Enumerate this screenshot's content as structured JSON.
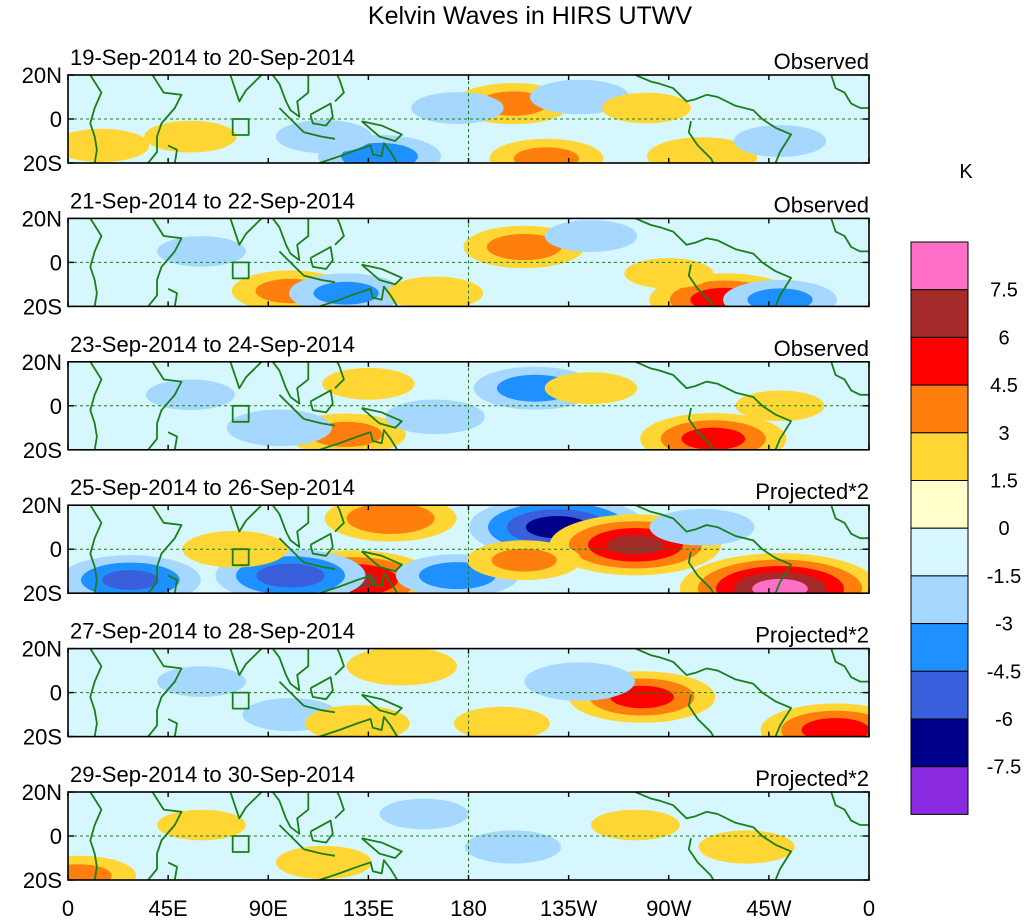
{
  "chart_data": {
    "type": "heatmap",
    "title": "Kelvin Waves in HIRS UTWV",
    "units": "K",
    "x_ticks": [
      "0",
      "45E",
      "90E",
      "135E",
      "180",
      "135W",
      "90W",
      "45W",
      "0"
    ],
    "y_ticks": [
      "20N",
      "0",
      "20S"
    ],
    "xlim": [
      0,
      360
    ],
    "ylim": [
      -20,
      20
    ],
    "colorbar": {
      "labels": [
        "7.5",
        "6",
        "4.5",
        "3",
        "1.5",
        "0",
        "-1.5",
        "-3",
        "-4.5",
        "-6",
        "-7.5"
      ],
      "colors": [
        "#ff6ec7",
        "#a52a2a",
        "#ff0000",
        "#ff7f0e",
        "#ffd633",
        "#ffffcc",
        "#d7f7ff",
        "#a6d8ff",
        "#1e90ff",
        "#3a5fdc",
        "#00008b",
        "#8a2be2"
      ],
      "levels": [
        -7.5,
        -6,
        -4.5,
        -3,
        -1.5,
        0,
        1.5,
        3,
        4.5,
        6,
        7.5
      ]
    },
    "panels": [
      {
        "period": "19-Sep-2014 to 20-Sep-2014",
        "status": "Observed",
        "anomalies": [
          {
            "lon": 200,
            "lat": 7,
            "value": 3.2
          },
          {
            "lon": 230,
            "lat": 10,
            "value": -2.2
          },
          {
            "lon": 55,
            "lat": -8,
            "value": 1.8
          },
          {
            "lon": 140,
            "lat": -17,
            "value": -3.5
          },
          {
            "lon": 215,
            "lat": -18,
            "value": 3.0
          },
          {
            "lon": 285,
            "lat": -17,
            "value": 2.8
          },
          {
            "lon": 320,
            "lat": -10,
            "value": -1.8
          },
          {
            "lon": 115,
            "lat": -8,
            "value": -2.0
          },
          {
            "lon": 175,
            "lat": 5,
            "value": -1.8
          },
          {
            "lon": 260,
            "lat": 5,
            "value": 1.6
          },
          {
            "lon": 15,
            "lat": -12,
            "value": 2.0
          }
        ]
      },
      {
        "period": "21-Sep-2014 to 22-Sep-2014",
        "status": "Observed",
        "anomalies": [
          {
            "lon": 205,
            "lat": 7,
            "value": 3.4
          },
          {
            "lon": 100,
            "lat": -13,
            "value": 3.2
          },
          {
            "lon": 125,
            "lat": -14,
            "value": -3.0
          },
          {
            "lon": 295,
            "lat": -17,
            "value": 5.0
          },
          {
            "lon": 320,
            "lat": -17,
            "value": -3.0
          },
          {
            "lon": 165,
            "lat": -14,
            "value": 2.0
          },
          {
            "lon": 235,
            "lat": 12,
            "value": -1.8
          },
          {
            "lon": 60,
            "lat": 5,
            "value": -1.6
          },
          {
            "lon": 270,
            "lat": -5,
            "value": 1.6
          }
        ]
      },
      {
        "period": "23-Sep-2014 to 24-Sep-2014",
        "status": "Observed",
        "anomalies": [
          {
            "lon": 125,
            "lat": -13,
            "value": 3.3
          },
          {
            "lon": 290,
            "lat": -15,
            "value": 4.8
          },
          {
            "lon": 210,
            "lat": 8,
            "value": -3.5
          },
          {
            "lon": 235,
            "lat": 8,
            "value": 1.8
          },
          {
            "lon": 95,
            "lat": -10,
            "value": -2.5
          },
          {
            "lon": 165,
            "lat": -5,
            "value": -2.2
          },
          {
            "lon": 55,
            "lat": 5,
            "value": -1.6
          },
          {
            "lon": 135,
            "lat": 10,
            "value": 1.8
          },
          {
            "lon": 320,
            "lat": 0,
            "value": 1.6
          }
        ]
      },
      {
        "period": "25-Sep-2014 to 26-Sep-2014",
        "status": "Projected*2",
        "anomalies": [
          {
            "lon": 145,
            "lat": 14,
            "value": 4.0
          },
          {
            "lon": 128,
            "lat": -14,
            "value": 6.0
          },
          {
            "lon": 100,
            "lat": -12,
            "value": -5.0
          },
          {
            "lon": 28,
            "lat": -14,
            "value": -4.5
          },
          {
            "lon": 220,
            "lat": 10,
            "value": -6.5
          },
          {
            "lon": 255,
            "lat": 2,
            "value": 6.2
          },
          {
            "lon": 320,
            "lat": -18,
            "value": 7.8
          },
          {
            "lon": 75,
            "lat": 0,
            "value": 2.5
          },
          {
            "lon": 175,
            "lat": -12,
            "value": -3.5
          },
          {
            "lon": 205,
            "lat": -5,
            "value": 3.0
          },
          {
            "lon": 285,
            "lat": 10,
            "value": -2.5
          }
        ]
      },
      {
        "period": "27-Sep-2014 to 28-Sep-2014",
        "status": "Projected*2",
        "anomalies": [
          {
            "lon": 150,
            "lat": 12,
            "value": 2.8
          },
          {
            "lon": 258,
            "lat": -2,
            "value": 4.8
          },
          {
            "lon": 230,
            "lat": 5,
            "value": -2.8
          },
          {
            "lon": 100,
            "lat": -10,
            "value": -2.0
          },
          {
            "lon": 130,
            "lat": -14,
            "value": 2.5
          },
          {
            "lon": 345,
            "lat": -17,
            "value": 5.0
          },
          {
            "lon": 195,
            "lat": -14,
            "value": 2.0
          },
          {
            "lon": 60,
            "lat": 5,
            "value": -1.6
          }
        ]
      },
      {
        "period": "29-Sep-2014 to 30-Sep-2014",
        "status": "Projected*2",
        "anomalies": [
          {
            "lon": 115,
            "lat": -12,
            "value": 2.0
          },
          {
            "lon": 305,
            "lat": -5,
            "value": 2.0
          },
          {
            "lon": 5,
            "lat": -18,
            "value": 3.0
          },
          {
            "lon": 200,
            "lat": -5,
            "value": -2.0
          },
          {
            "lon": 160,
            "lat": 10,
            "value": -1.6
          },
          {
            "lon": 255,
            "lat": 5,
            "value": 1.6
          },
          {
            "lon": 60,
            "lat": 5,
            "value": 1.6
          }
        ]
      }
    ]
  }
}
